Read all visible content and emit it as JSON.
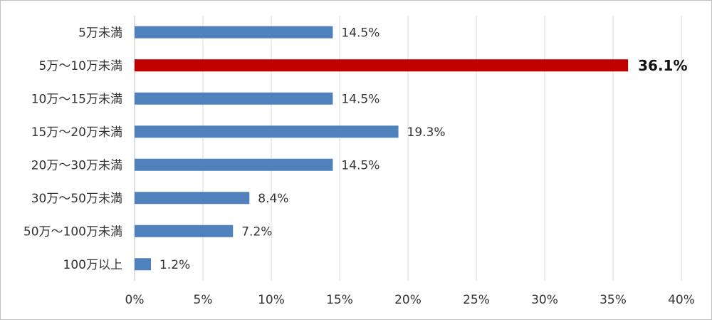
{
  "chart_data": {
    "type": "bar",
    "orientation": "horizontal",
    "categories": [
      "5万未満",
      "5万〜10万未満",
      "10万〜15万未満",
      "15万〜20万未満",
      "20万〜30万未満",
      "30万〜50万未満",
      "50万〜100万未満",
      "100万以上"
    ],
    "values": [
      14.5,
      36.1,
      14.5,
      19.3,
      14.5,
      8.4,
      7.2,
      1.2
    ],
    "value_labels": [
      "14.5%",
      "36.1%",
      "14.5%",
      "19.3%",
      "14.5%",
      "8.4%",
      "7.2%",
      "1.2%"
    ],
    "highlight_index": 1,
    "xlim": [
      0,
      40
    ],
    "x_ticks": [
      0,
      5,
      10,
      15,
      20,
      25,
      30,
      35,
      40
    ],
    "x_tick_labels": [
      "0%",
      "5%",
      "10%",
      "15%",
      "20%",
      "25%",
      "30%",
      "35%",
      "40%"
    ],
    "title": "",
    "xlabel": "",
    "ylabel": "",
    "grid": "vertical",
    "legend": "none",
    "colors": {
      "bar": "#4f81bd",
      "highlight_bar": "#c00000",
      "grid": "#d9d9d9",
      "text": "#333333"
    }
  }
}
